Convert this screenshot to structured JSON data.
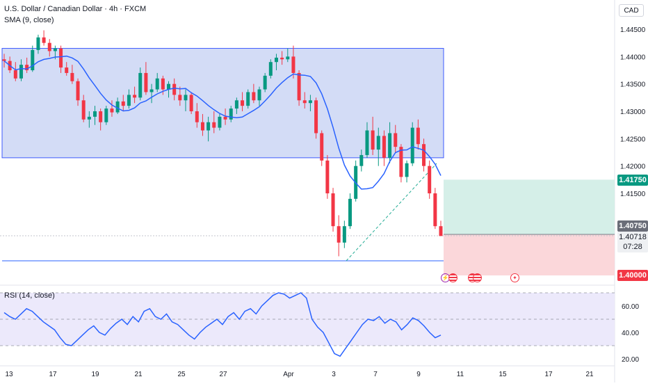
{
  "header": {
    "symbol_title": "U.S. Dollar / Canadian Dollar · 4h · FXCM",
    "indicator_label": "SMA (9, close)"
  },
  "rsi_panel": {
    "label": "RSI (14, close)"
  },
  "currency_button": "CAD",
  "price_axis": {
    "ticks": [
      "1.44500",
      "1.44000",
      "1.43500",
      "1.43000",
      "1.42500",
      "1.42000",
      "1.41500",
      "1.40000"
    ],
    "tick_values": [
      1.445,
      1.44,
      1.435,
      1.43,
      1.425,
      1.42,
      1.415,
      1.4
    ]
  },
  "price_tags": {
    "take_profit": "1.41750",
    "entry": "1.40750",
    "last_price": "1.40718",
    "countdown": "07:28",
    "stop_loss": "1.40000"
  },
  "rsi_axis": {
    "ticks": [
      "60.00",
      "40.00",
      "20.00"
    ],
    "tick_values": [
      60,
      40,
      20
    ]
  },
  "time_axis": {
    "labels": [
      "13",
      "17",
      "19",
      "21",
      "25",
      "27",
      "Apr",
      "3",
      "7",
      "9",
      "11",
      "15",
      "17",
      "21"
    ]
  },
  "events": [
    {
      "icon": "lightning-icon"
    },
    {
      "icon": "us-flag-icon"
    },
    {
      "icon": "us-flag-icon"
    },
    {
      "icon": "ca-flag-icon"
    }
  ],
  "colors": {
    "up_candle": "#089981",
    "down_candle": "#f23645",
    "sma_line": "#2962ff",
    "range_box": "#d1daf5",
    "profit_zone": "#d5efe8",
    "loss_zone": "#fbd7da",
    "rsi_band": "#ece9fb"
  }
}
